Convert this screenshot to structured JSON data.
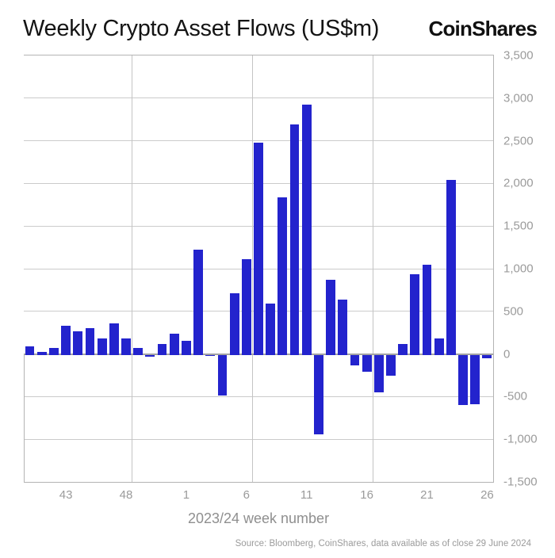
{
  "header": {
    "title": "Weekly Crypto Asset Flows (US$m)",
    "logo": "CoinShares"
  },
  "footer": {
    "source": "Source: Bloomberg, CoinShares, data available as of close 29 June 2024"
  },
  "chart_data": {
    "type": "bar",
    "title": "Weekly Crypto Asset Flows (US$m)",
    "xlabel": "2023/24 week number",
    "ylabel": "",
    "ylim": [
      -1500,
      3500
    ],
    "grid": true,
    "legend_position": "none",
    "bar_color": "#2323cd",
    "gridline_color": "#cbcbcb",
    "zero_line_color": "#a3a3a3",
    "axis_text_color": "#9b9b9b",
    "categories": [
      "40",
      "41",
      "42",
      "43",
      "44",
      "45",
      "46",
      "47",
      "48",
      "49",
      "50",
      "51",
      "52",
      "1",
      "2",
      "3",
      "4",
      "5",
      "6",
      "7",
      "8",
      "9",
      "10",
      "11",
      "12",
      "13",
      "14",
      "15",
      "16",
      "17",
      "18",
      "19",
      "20",
      "21",
      "22",
      "23",
      "24",
      "25",
      "26"
    ],
    "values": [
      85,
      25,
      75,
      330,
      270,
      305,
      180,
      355,
      185,
      70,
      -20,
      115,
      240,
      155,
      1220,
      -15,
      -475,
      710,
      1110,
      2480,
      590,
      1835,
      2695,
      2925,
      -930,
      870,
      640,
      -120,
      -200,
      -440,
      -250,
      120,
      935,
      1050,
      185,
      2045,
      -590,
      -580,
      -40
    ],
    "x_ticks": [
      {
        "label": "43",
        "bar_index": 3
      },
      {
        "label": "48",
        "bar_index": 8
      },
      {
        "label": "1",
        "bar_index": 13
      },
      {
        "label": "6",
        "bar_index": 18
      },
      {
        "label": "11",
        "bar_index": 23
      },
      {
        "label": "16",
        "bar_index": 28
      },
      {
        "label": "21",
        "bar_index": 33
      },
      {
        "label": "26",
        "bar_index": 38
      }
    ],
    "y_ticks": [
      {
        "label": "3,500",
        "value": 3500
      },
      {
        "label": "3,000",
        "value": 3000
      },
      {
        "label": "2,500",
        "value": 2500
      },
      {
        "label": "2,000",
        "value": 2000
      },
      {
        "label": "1,500",
        "value": 1500
      },
      {
        "label": "1,000",
        "value": 1000
      },
      {
        "label": "500",
        "value": 500
      },
      {
        "label": "0",
        "value": 0
      },
      {
        "label": "-500",
        "value": -500
      },
      {
        "label": "-1,000",
        "value": -1000
      },
      {
        "label": "-1,500",
        "value": -1500
      }
    ],
    "vertical_gridlines_after_bar_index": [
      8,
      18,
      28
    ]
  }
}
